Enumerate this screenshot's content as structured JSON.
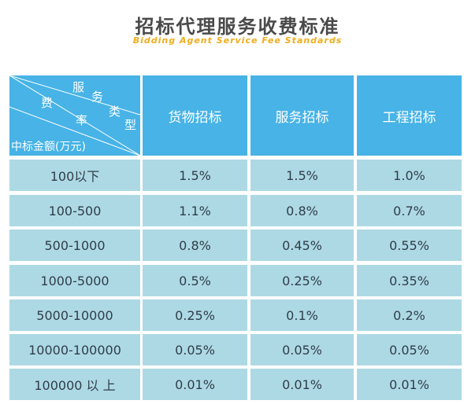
{
  "title": "招标代理服务收费标准",
  "subtitle": "Bidding Agent Service Fee Standards",
  "corner": {
    "service_chars": [
      "服",
      "务",
      "类",
      "型"
    ],
    "fee_chars": [
      "费",
      "率"
    ],
    "amount_label": "中标金额(万元)"
  },
  "columns": [
    "货物招标",
    "服务招标",
    "工程招标"
  ],
  "rows": [
    {
      "range": "100以下",
      "goods": "1.5%",
      "service": "1.5%",
      "engineering": "1.0%"
    },
    {
      "range": "100-500",
      "goods": "1.1%",
      "service": "0.8%",
      "engineering": "0.7%"
    },
    {
      "range": "500-1000",
      "goods": "0.8%",
      "service": "0.45%",
      "engineering": "0.55%"
    },
    {
      "range": "1000-5000",
      "goods": "0.5%",
      "service": "0.25%",
      "engineering": "0.35%"
    },
    {
      "range": "5000-10000",
      "goods": "0.25%",
      "service": "0.1%",
      "engineering": "0.2%"
    },
    {
      "range": "10000-100000",
      "goods": "0.05%",
      "service": "0.05%",
      "engineering": "0.05%"
    },
    {
      "range": "100000 以 上",
      "goods": "0.01%",
      "service": "0.01%",
      "engineering": "0.01%"
    }
  ],
  "colors": {
    "header": "#47b3e6",
    "body": "#add9e4",
    "subtitle": "#f0ad1c"
  }
}
